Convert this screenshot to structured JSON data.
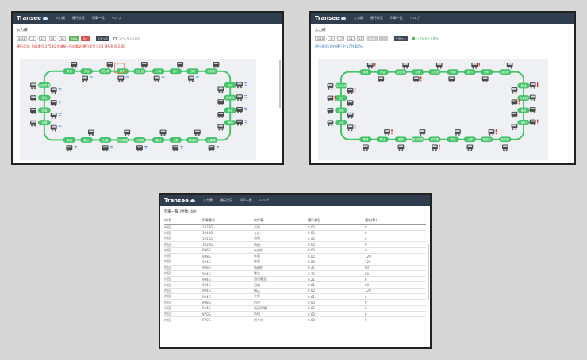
{
  "app": {
    "brand": "Transee"
  },
  "nav": {
    "items": [
      "入力欄",
      "運行状況",
      "列車一覧",
      "ヘルプ"
    ]
  },
  "input_section": {
    "title": "入力欄"
  },
  "shot1": {
    "fields": [
      "2016",
      "6",
      "17",
      "16",
      "10"
    ],
    "buttons": [
      "Stop",
      "5x",
      "リセット"
    ],
    "realtime_label": "リアルタイム表示",
    "realtime_checked": false,
    "status": "運行状況: 列車番号 2753G 金浦駅~西広場駅 運行状況 0.00 運行状況 2.00"
  },
  "shot2": {
    "fields": [
      "2016",
      "6",
      "17",
      "16",
      "11"
    ],
    "buttons": [
      "Start",
      "",
      "リセット"
    ],
    "realtime_label": "リアルタイム表示",
    "realtime_checked": true,
    "status": "運行状況 (現在運行中 27列車6%)"
  },
  "colors": {
    "navbar": "#2f3d4e",
    "station": "#47c46b",
    "train": "#4a4a4a",
    "warning": "#d9342b",
    "info": "#4a7fd6",
    "status_alert": "#d9342b",
    "status_ok": "#3b7cc0",
    "btn_stop": "#5cb85c",
    "btn_speed": "#d9534f",
    "btn_reset": "#3f4a58",
    "btn_start": "#5cb85c",
    "btn_disabled": "#c9c9c9"
  },
  "map": {
    "stations": [
      "原宿",
      "渋谷",
      "恵比寿",
      "目黒",
      "五反田",
      "大崎",
      "品川",
      "田町",
      "浜松町",
      "新橋",
      "有楽町",
      "東京",
      "神田",
      "秋葉原",
      "御徒町",
      "上野",
      "鶯谷",
      "日暮里",
      "西日暮里",
      "田端",
      "駒込",
      "巣鴨",
      "大塚",
      "池袋",
      "目白",
      "高田馬場",
      "新大久保",
      "新宿",
      "代々木",
      "明治神宮"
    ],
    "icons": [
      "train-icon",
      "warning-icon",
      "wifi-icon"
    ]
  },
  "train_list": {
    "title": "列車一覧 (件数: 40)",
    "columns": [
      "内/外",
      "列車番号",
      "次停車",
      "運行状況",
      "遅れ(秒)"
    ],
    "rows": [
      [
        "内回",
        "1024G",
        "大崎",
        "0.00",
        "0"
      ],
      [
        "内回",
        "1046G",
        "五反",
        "0.00",
        "0"
      ],
      [
        "内回",
        "1015G",
        "目黒",
        "0.00",
        "0"
      ],
      [
        "内回",
        "1023G",
        "新宿",
        "0.00",
        "0"
      ],
      [
        "内回",
        "986G",
        "有楽町",
        "0.00",
        "0"
      ],
      [
        "内回",
        "998G",
        "秋葉",
        "0.00",
        "120"
      ],
      [
        "内回",
        "994G",
        "神田",
        "0.24",
        "120"
      ],
      [
        "内回",
        "988G",
        "新橋町",
        "0.21",
        "60"
      ],
      [
        "内回",
        "994G",
        "鶯谷",
        "0.72",
        "60"
      ],
      [
        "内回",
        "994G",
        "西日暮里",
        "0.21",
        "0"
      ],
      [
        "内回",
        "994G",
        "田端",
        "0.61",
        "60"
      ],
      [
        "内回",
        "994G",
        "駒込",
        "0.00",
        "120"
      ],
      [
        "内回",
        "994G",
        "大塚",
        "0.61",
        "0"
      ],
      [
        "内回",
        "998G",
        "目白",
        "0.00",
        "0"
      ],
      [
        "内回",
        "994G",
        "高田馬場",
        "0.62",
        "0"
      ],
      [
        "内回",
        "970G",
        "新宿",
        "0.00",
        "0"
      ],
      [
        "内回",
        "970G",
        "代々木",
        "0.00",
        "0"
      ]
    ]
  }
}
